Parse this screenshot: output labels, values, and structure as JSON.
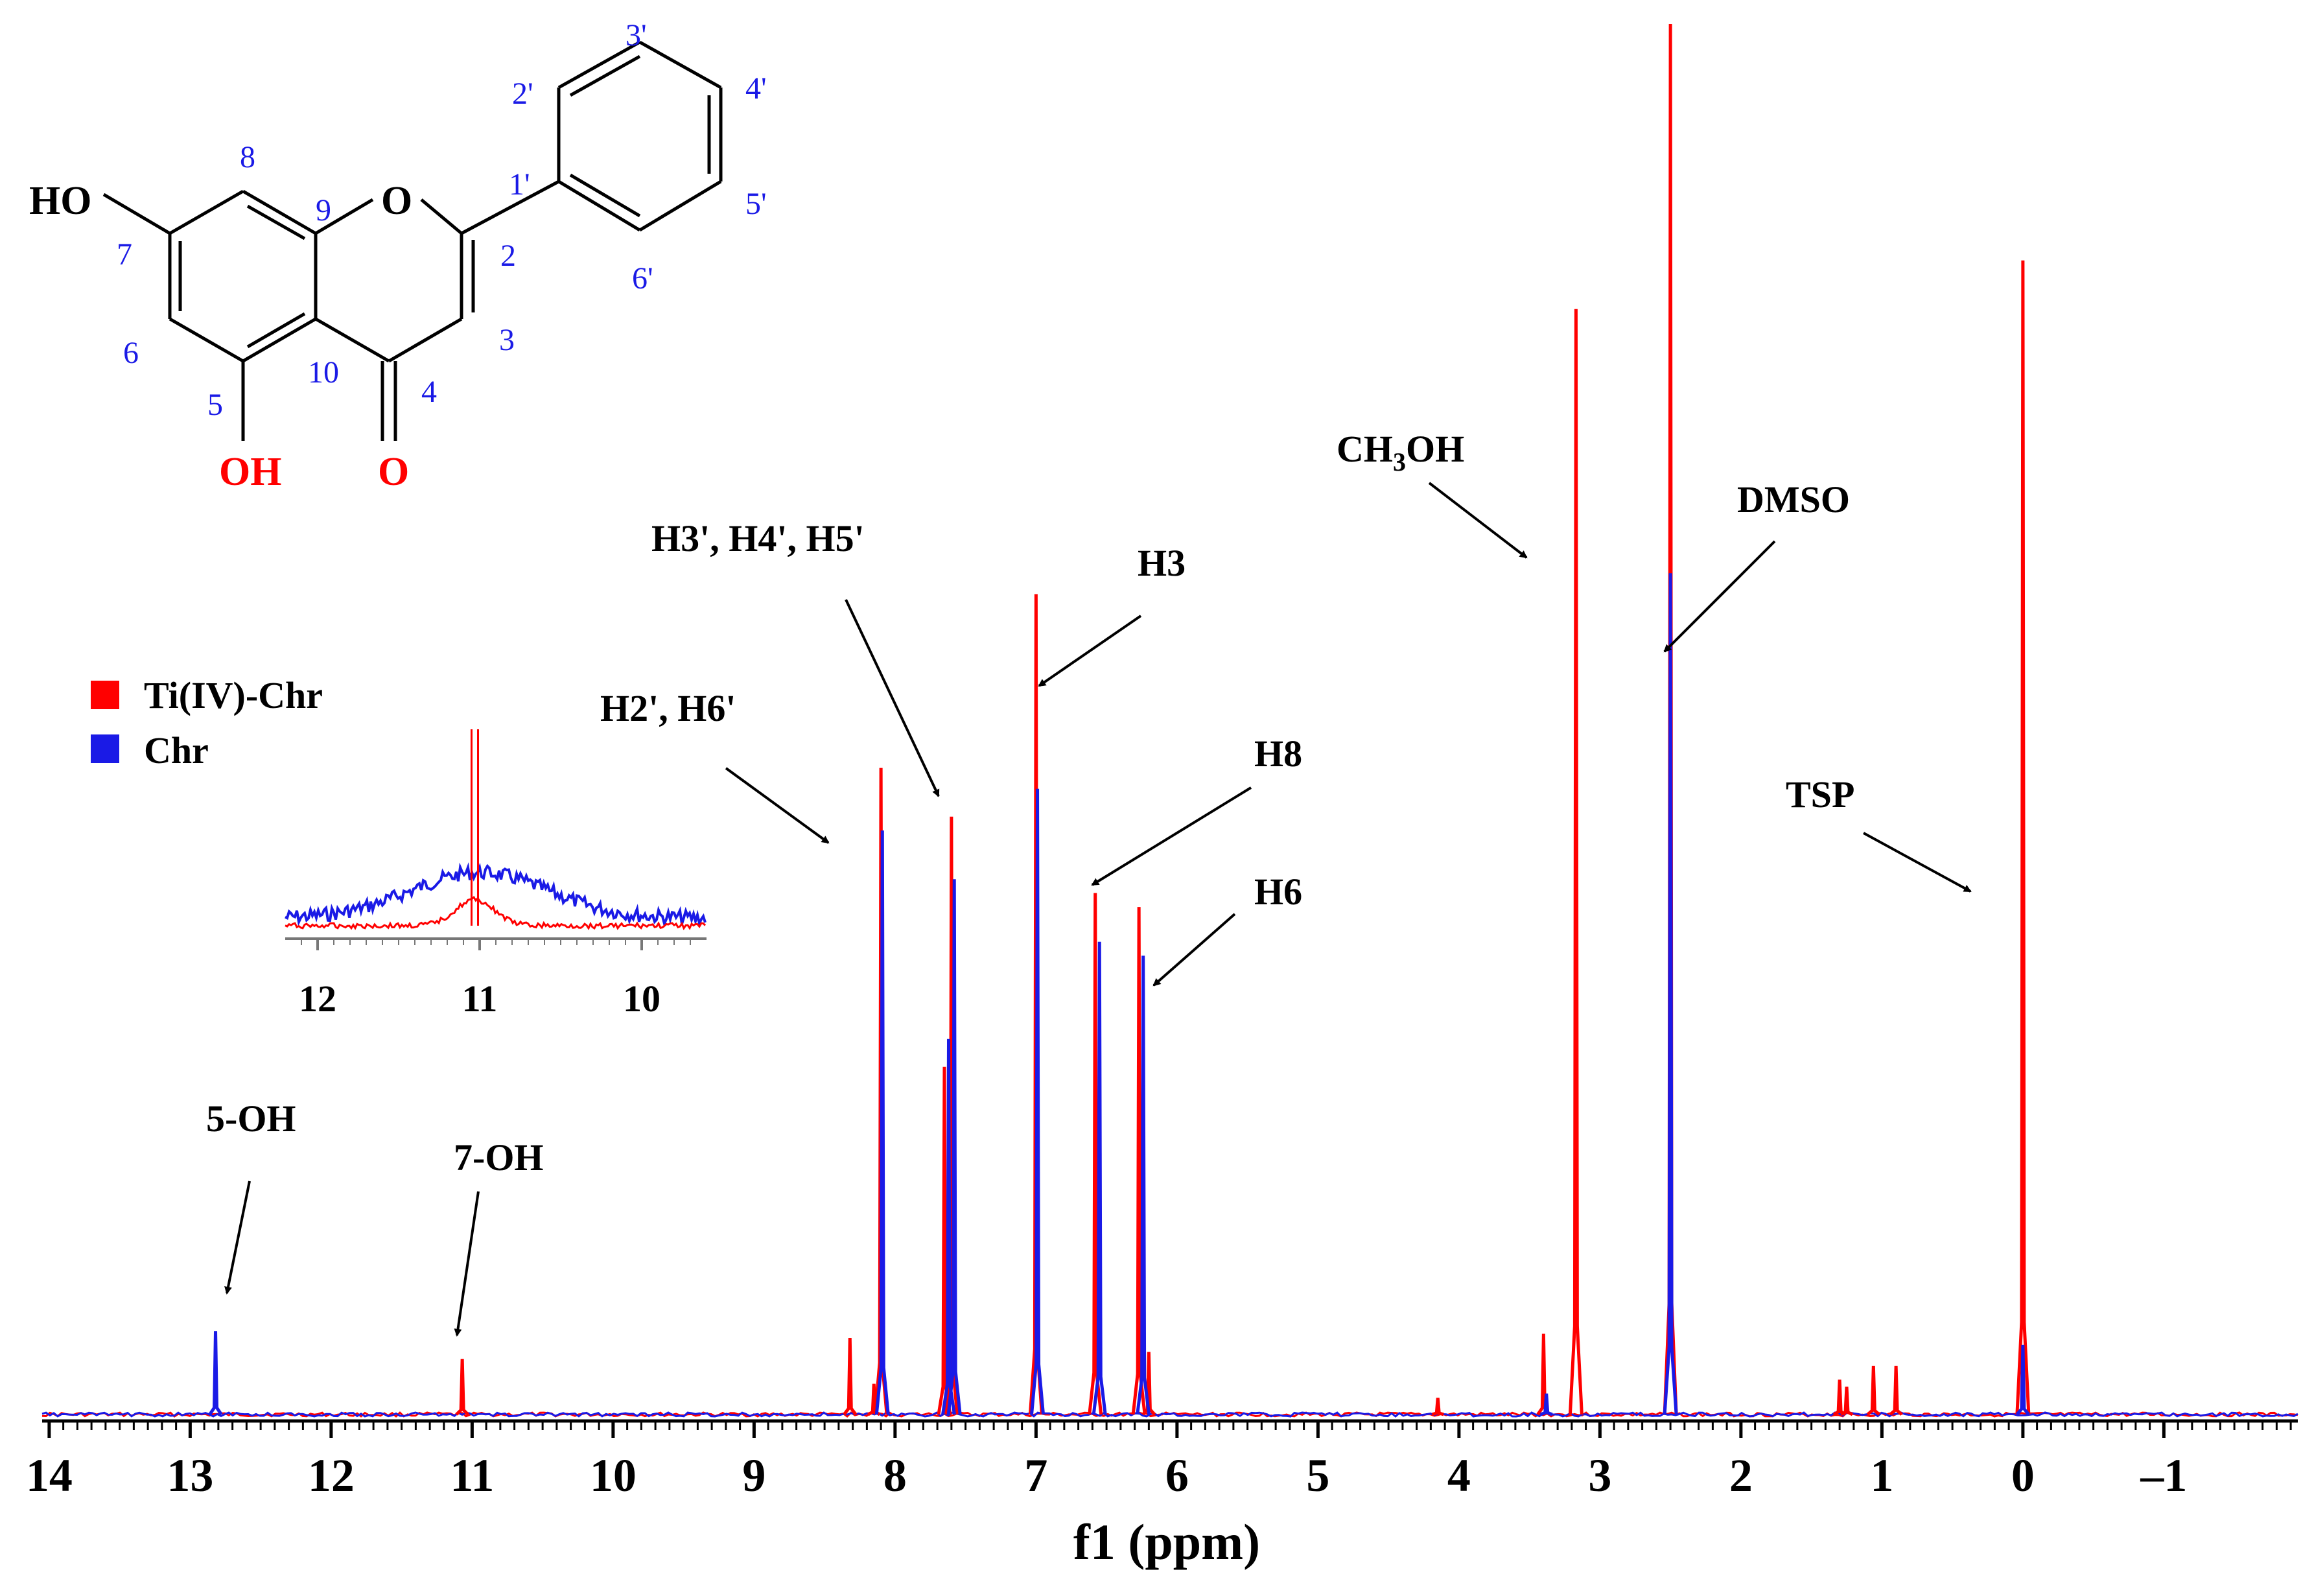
{
  "chart_data": {
    "type": "line",
    "xlabel": "f1 (ppm)",
    "xlim": [
      14.05,
      -1.95
    ],
    "x_reversed": true,
    "x_ticks": [
      14,
      13,
      12,
      11,
      10,
      9,
      8,
      7,
      6,
      5,
      4,
      3,
      2,
      1,
      0,
      -1
    ],
    "x_tick_labels": [
      "14",
      "13",
      "12",
      "11",
      "10",
      "9",
      "8",
      "7",
      "6",
      "5",
      "4",
      "3",
      "2",
      "1",
      "0",
      "–1"
    ],
    "legend_position": "left",
    "series": [
      {
        "name": "Ti(IV)-Chr",
        "color": "#ff0000",
        "peaks": [
          {
            "ppm": 11.07,
            "intensity": 0.04
          },
          {
            "ppm": 8.32,
            "intensity": 0.055
          },
          {
            "ppm": 8.15,
            "intensity": 0.022
          },
          {
            "ppm": 8.1,
            "intensity": 0.465
          },
          {
            "ppm": 7.65,
            "intensity": 0.25
          },
          {
            "ppm": 7.6,
            "intensity": 0.43
          },
          {
            "ppm": 7.0,
            "intensity": 0.59
          },
          {
            "ppm": 6.58,
            "intensity": 0.375
          },
          {
            "ppm": 6.27,
            "intensity": 0.365
          },
          {
            "ppm": 6.2,
            "intensity": 0.045
          },
          {
            "ppm": 4.15,
            "intensity": 0.012
          },
          {
            "ppm": 3.4,
            "intensity": 0.058
          },
          {
            "ppm": 3.17,
            "intensity": 0.795
          },
          {
            "ppm": 2.5,
            "intensity": 1.0
          },
          {
            "ppm": 1.3,
            "intensity": 0.025
          },
          {
            "ppm": 1.25,
            "intensity": 0.02
          },
          {
            "ppm": 1.06,
            "intensity": 0.035
          },
          {
            "ppm": 0.9,
            "intensity": 0.035
          },
          {
            "ppm": 0.0,
            "intensity": 0.83
          }
        ]
      },
      {
        "name": "Chr",
        "color": "#1a1ae6",
        "peaks": [
          {
            "ppm": 12.82,
            "intensity": 0.06
          },
          {
            "ppm": 8.09,
            "intensity": 0.42
          },
          {
            "ppm": 7.62,
            "intensity": 0.27
          },
          {
            "ppm": 7.58,
            "intensity": 0.385
          },
          {
            "ppm": 6.99,
            "intensity": 0.45
          },
          {
            "ppm": 6.55,
            "intensity": 0.34
          },
          {
            "ppm": 6.24,
            "intensity": 0.33
          },
          {
            "ppm": 3.38,
            "intensity": 0.015
          },
          {
            "ppm": 2.5,
            "intensity": 0.605
          },
          {
            "ppm": 0.0,
            "intensity": 0.05
          }
        ]
      }
    ],
    "annotations": [
      {
        "id": "5oh",
        "text": "5-OH",
        "ppm": 12.82
      },
      {
        "id": "7oh",
        "text": "7-OH",
        "ppm": 11.07
      },
      {
        "id": "h26",
        "text": "H2', H6'",
        "ppm": 8.1
      },
      {
        "id": "h345",
        "text": "H3', H4', H5'",
        "ppm": 7.6
      },
      {
        "id": "h3",
        "text": "H3",
        "ppm": 7.0
      },
      {
        "id": "h8",
        "text": "H8",
        "ppm": 6.58
      },
      {
        "id": "h6",
        "text": "H6",
        "ppm": 6.27
      },
      {
        "id": "meoh",
        "text": "CH3OH",
        "ppm": 3.17
      },
      {
        "id": "dmso",
        "text": "DMSO",
        "ppm": 2.5
      },
      {
        "id": "tsp",
        "text": "TSP",
        "ppm": 0.0
      }
    ],
    "inset": {
      "xlim": [
        12.2,
        9.6
      ],
      "x_ticks": [
        12,
        11,
        10
      ],
      "x_tick_labels": [
        "12",
        "11",
        "10"
      ],
      "red_sharp_ppm": 11.03,
      "blue_broad_center_ppm": 11.0
    },
    "structure_labels": {
      "ho": "HO",
      "oh": "OH",
      "ring_o": "O",
      "carbonyl_o": "O",
      "positions": [
        "8",
        "9",
        "1'",
        "2'",
        "3'",
        "4'",
        "5'",
        "6'",
        "7",
        "2",
        "6",
        "10",
        "3",
        "5",
        "4"
      ]
    }
  }
}
